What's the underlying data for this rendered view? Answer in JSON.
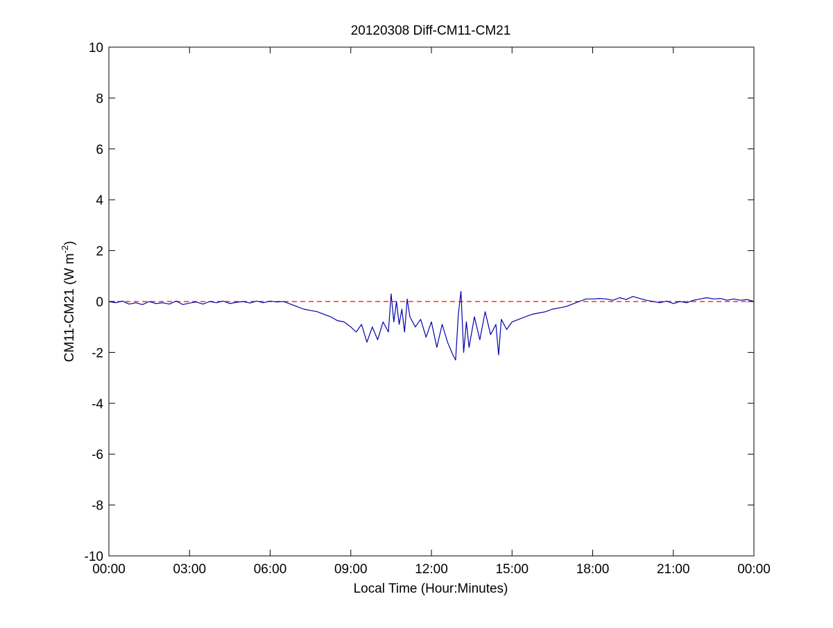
{
  "chart_data": {
    "type": "line",
    "title": "20120308 Diff-CM11-CM21",
    "xlabel": "Local Time (Hour:Minutes)",
    "ylabel": {
      "base": "CM11-CM21 (W m",
      "superscript": "-2",
      "close": ")"
    },
    "xlim": [
      0,
      24
    ],
    "ylim": [
      -10,
      10
    ],
    "grid": false,
    "x_ticks": [
      {
        "value": 0,
        "label": "00:00"
      },
      {
        "value": 3,
        "label": "03:00"
      },
      {
        "value": 6,
        "label": "06:00"
      },
      {
        "value": 9,
        "label": "09:00"
      },
      {
        "value": 12,
        "label": "12:00"
      },
      {
        "value": 15,
        "label": "15:00"
      },
      {
        "value": 18,
        "label": "18:00"
      },
      {
        "value": 21,
        "label": "21:00"
      },
      {
        "value": 24,
        "label": "00:00"
      }
    ],
    "y_ticks": [
      {
        "value": 10,
        "label": "10"
      },
      {
        "value": 8,
        "label": "8"
      },
      {
        "value": 6,
        "label": "6"
      },
      {
        "value": 4,
        "label": "4"
      },
      {
        "value": 2,
        "label": "2"
      },
      {
        "value": 0,
        "label": "0"
      },
      {
        "value": -2,
        "label": "-2"
      },
      {
        "value": -4,
        "label": "-4"
      },
      {
        "value": -6,
        "label": "-6"
      },
      {
        "value": -8,
        "label": "-8"
      },
      {
        "value": -10,
        "label": "-10"
      }
    ],
    "reference_line": {
      "y": 0,
      "style": "dashed",
      "color": "#ff0000"
    },
    "series": [
      {
        "color": "#0000aa",
        "x": [
          0.0,
          0.25,
          0.5,
          0.75,
          1.0,
          1.25,
          1.5,
          1.75,
          2.0,
          2.25,
          2.5,
          2.75,
          3.0,
          3.25,
          3.5,
          3.75,
          4.0,
          4.25,
          4.5,
          4.75,
          5.0,
          5.25,
          5.5,
          5.75,
          6.0,
          6.25,
          6.5,
          6.75,
          7.0,
          7.25,
          7.5,
          7.75,
          8.0,
          8.25,
          8.5,
          8.75,
          9.0,
          9.2,
          9.4,
          9.6,
          9.8,
          10.0,
          10.2,
          10.4,
          10.5,
          10.6,
          10.7,
          10.8,
          10.9,
          11.0,
          11.1,
          11.2,
          11.4,
          11.6,
          11.8,
          12.0,
          12.2,
          12.4,
          12.6,
          12.8,
          12.9,
          13.0,
          13.1,
          13.2,
          13.3,
          13.4,
          13.6,
          13.8,
          14.0,
          14.2,
          14.4,
          14.5,
          14.6,
          14.8,
          15.0,
          15.25,
          15.5,
          15.75,
          16.0,
          16.25,
          16.5,
          16.75,
          17.0,
          17.25,
          17.5,
          17.75,
          18.0,
          18.25,
          18.5,
          18.75,
          19.0,
          19.25,
          19.5,
          19.75,
          20.0,
          20.25,
          20.5,
          20.75,
          21.0,
          21.25,
          21.5,
          21.75,
          22.0,
          22.25,
          22.5,
          22.75,
          23.0,
          23.25,
          23.5,
          23.75,
          24.0
        ],
        "y": [
          0.0,
          -0.05,
          0.02,
          -0.1,
          -0.05,
          -0.12,
          0.0,
          -0.08,
          -0.05,
          -0.1,
          0.02,
          -0.12,
          -0.06,
          -0.02,
          -0.1,
          0.0,
          -0.05,
          0.02,
          -0.08,
          -0.03,
          0.0,
          -0.06,
          0.02,
          -0.05,
          0.02,
          -0.02,
          0.0,
          -0.1,
          -0.2,
          -0.3,
          -0.35,
          -0.4,
          -0.5,
          -0.6,
          -0.75,
          -0.8,
          -1.0,
          -1.2,
          -0.9,
          -1.6,
          -1.0,
          -1.5,
          -0.8,
          -1.2,
          0.3,
          -0.8,
          0.0,
          -0.9,
          -0.3,
          -1.2,
          0.1,
          -0.6,
          -1.0,
          -0.7,
          -1.4,
          -0.8,
          -1.8,
          -0.9,
          -1.6,
          -2.1,
          -2.3,
          -0.5,
          0.4,
          -2.0,
          -0.8,
          -1.8,
          -0.6,
          -1.5,
          -0.4,
          -1.3,
          -0.9,
          -2.1,
          -0.7,
          -1.1,
          -0.8,
          -0.7,
          -0.6,
          -0.5,
          -0.45,
          -0.4,
          -0.3,
          -0.25,
          -0.2,
          -0.1,
          0.0,
          0.1,
          0.1,
          0.12,
          0.1,
          0.05,
          0.15,
          0.08,
          0.2,
          0.12,
          0.05,
          0.0,
          -0.05,
          0.02,
          -0.08,
          0.0,
          -0.05,
          0.05,
          0.1,
          0.15,
          0.1,
          0.12,
          0.05,
          0.1,
          0.05,
          0.08,
          0.0
        ]
      }
    ]
  }
}
